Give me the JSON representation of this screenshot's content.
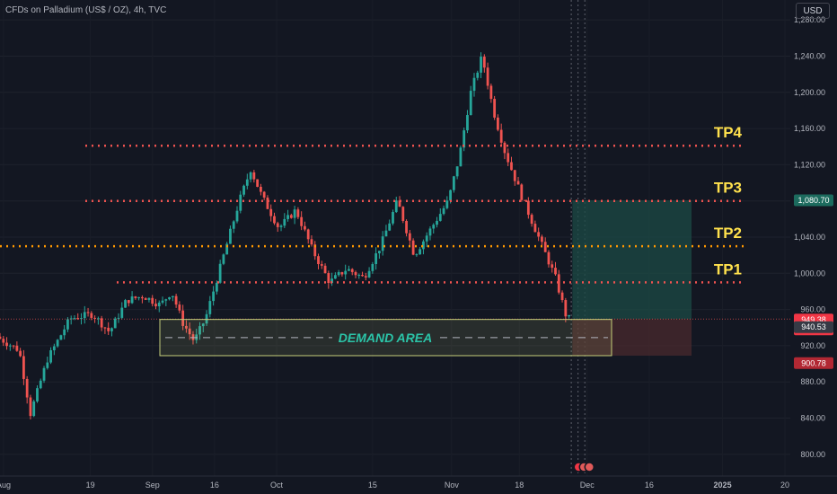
{
  "header": {
    "symbol_title": "CFDs on Palladium (US$ / OZ), 4h, TVC",
    "currency": "USD"
  },
  "colors": {
    "background": "#131722",
    "up": "#26a69a",
    "down": "#ef5350",
    "tp_line": "#ef5350",
    "tp_orange_line": "#ff9800",
    "tp_label": "#ffe14d",
    "demand_border": "#c5cf7a",
    "demand_text": "#2bc4a8",
    "profit_zone": "#1c4b45",
    "loss_zone": "#4a2a2d"
  },
  "chart_data": {
    "type": "candlestick",
    "title": "CFDs on Palladium (US$ / OZ), 4h, TVC",
    "xlabel": "",
    "ylabel": "USD",
    "ylim": [
      776,
      1302
    ],
    "grid": true,
    "y_ticks": [
      800,
      840,
      880,
      920,
      960,
      1000,
      1040,
      1080,
      1120,
      1160,
      1200,
      1240,
      1280
    ],
    "y_tick_labels": [
      "800.00",
      "840.00",
      "880.00",
      "920.00",
      "960.00",
      "1,000.00",
      "1,040.00",
      "1,080.00",
      "1,120.00",
      "1,160.00",
      "1,200.00",
      "1,240.00",
      "1,280.00"
    ],
    "x_tick_labels": [
      "Aug",
      "19",
      "Sep",
      "16",
      "Oct",
      "15",
      "Nov",
      "18",
      "Dec",
      "16",
      "2025",
      "20"
    ],
    "price_path": [
      {
        "day": 0,
        "price": 930
      },
      {
        "day": 4,
        "price": 915
      },
      {
        "day": 6,
        "price": 845
      },
      {
        "day": 9,
        "price": 905
      },
      {
        "day": 13,
        "price": 950
      },
      {
        "day": 17,
        "price": 955
      },
      {
        "day": 20,
        "price": 935
      },
      {
        "day": 23,
        "price": 970
      },
      {
        "day": 26,
        "price": 975
      },
      {
        "day": 29,
        "price": 965
      },
      {
        "day": 31,
        "price": 980
      },
      {
        "day": 33,
        "price": 945
      },
      {
        "day": 35,
        "price": 925
      },
      {
        "day": 37,
        "price": 950
      },
      {
        "day": 40,
        "price": 1015
      },
      {
        "day": 43,
        "price": 1080
      },
      {
        "day": 45,
        "price": 1115
      },
      {
        "day": 47,
        "price": 1085
      },
      {
        "day": 50,
        "price": 1050
      },
      {
        "day": 53,
        "price": 1070
      },
      {
        "day": 56,
        "price": 1025
      },
      {
        "day": 59,
        "price": 990
      },
      {
        "day": 62,
        "price": 1005
      },
      {
        "day": 65,
        "price": 995
      },
      {
        "day": 68,
        "price": 1030
      },
      {
        "day": 71,
        "price": 1080
      },
      {
        "day": 74,
        "price": 1020
      },
      {
        "day": 77,
        "price": 1050
      },
      {
        "day": 80,
        "price": 1080
      },
      {
        "day": 82,
        "price": 1130
      },
      {
        "day": 84,
        "price": 1200
      },
      {
        "day": 86,
        "price": 1240
      },
      {
        "day": 88,
        "price": 1180
      },
      {
        "day": 90,
        "price": 1135
      },
      {
        "day": 93,
        "price": 1085
      },
      {
        "day": 96,
        "price": 1040
      },
      {
        "day": 99,
        "price": 995
      },
      {
        "day": 101,
        "price": 950
      }
    ],
    "horizontal_levels": [
      {
        "name": "TP4",
        "value": 1141
      },
      {
        "name": "TP3",
        "value": 1080
      },
      {
        "name": "TP2",
        "value": 1030
      },
      {
        "name": "TP1",
        "value": 990
      }
    ],
    "demand_area": {
      "label": "DEMAND AREA",
      "low": 909,
      "high": 949,
      "mid": 929
    },
    "position": {
      "entry": 949.38,
      "target": 1080.7,
      "stop": 909
    },
    "price_tags": [
      {
        "text": "1,080.70",
        "value": 1080.7,
        "color": "#1c6b5e"
      },
      {
        "text": "949.38",
        "subtext": "01:27:22",
        "value": 949.38,
        "color": "#f23645"
      },
      {
        "text": "940.53",
        "value": 940.53,
        "color": "#363a45"
      },
      {
        "text": "900.78",
        "value": 900.78,
        "color": "#b22833"
      }
    ]
  }
}
